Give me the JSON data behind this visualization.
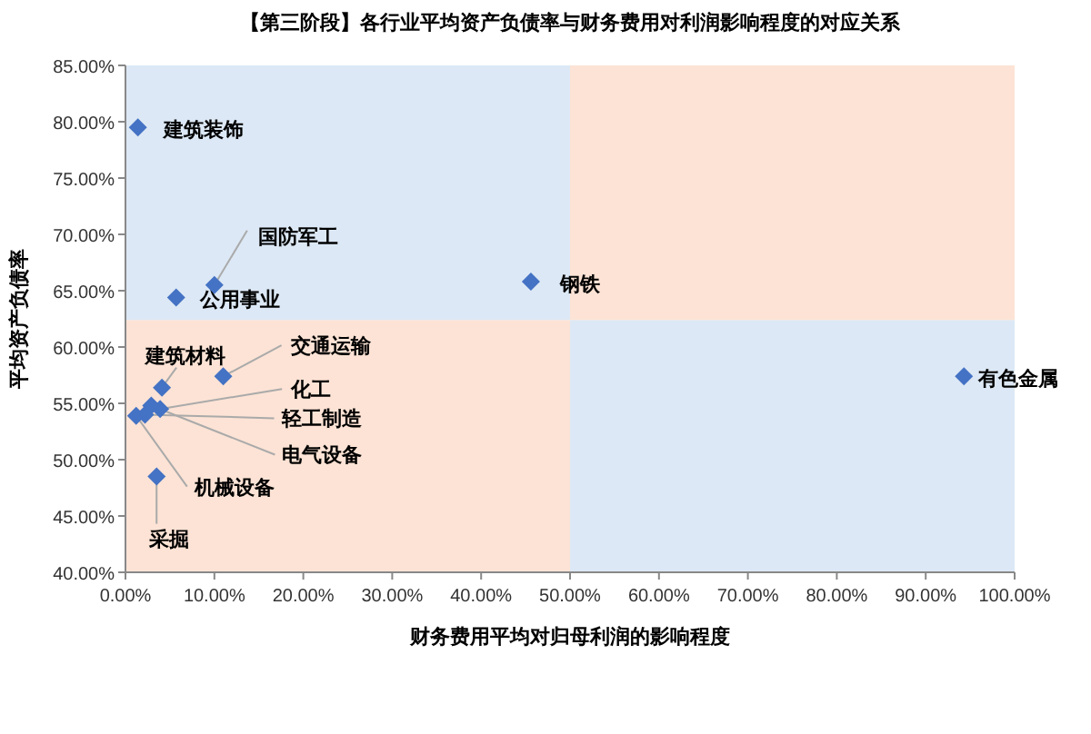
{
  "chart_data": {
    "type": "scatter",
    "title": "【第三阶段】各行业平均资产负债率与财务费用对利润影响程度的对应关系",
    "xlabel": "财务费用平均对归母利润的影响程度",
    "ylabel": "平均资产负债率",
    "series": [
      {
        "color": "#4472c4",
        "x": [
          1.4,
          10.0,
          5.7,
          45.6,
          94.3,
          11.0,
          4.1,
          3.9,
          2.2,
          2.9,
          1.2,
          3.5
        ],
        "values": [
          79.5,
          65.5,
          64.4,
          65.8,
          57.4,
          57.4,
          56.4,
          54.5,
          54.0,
          54.8,
          53.9,
          48.5
        ]
      }
    ],
    "marker": "diamond",
    "xlim": [
      0,
      100
    ],
    "xticks": [
      {
        "value": 0,
        "label": "0.00%"
      },
      {
        "value": 10,
        "label": "10.00%"
      },
      {
        "value": 20,
        "label": "20.00%"
      },
      {
        "value": 30,
        "label": "30.00%"
      },
      {
        "value": 40,
        "label": "40.00%"
      },
      {
        "value": 50,
        "label": "50.00%"
      },
      {
        "value": 60,
        "label": "60.00%"
      },
      {
        "value": 70,
        "label": "70.00%"
      },
      {
        "value": 80,
        "label": "80.00%"
      },
      {
        "value": 90,
        "label": "90.00%"
      },
      {
        "value": 100,
        "label": "100.00%"
      }
    ],
    "ylim": [
      40,
      85
    ],
    "yticks": [
      {
        "value": 40,
        "label": "40.00%"
      },
      {
        "value": 45,
        "label": "45.00%"
      },
      {
        "value": 50,
        "label": "50.00%"
      },
      {
        "value": 55,
        "label": "55.00%"
      },
      {
        "value": 60,
        "label": "60.00%"
      },
      {
        "value": 65,
        "label": "65.00%"
      },
      {
        "value": 70,
        "label": "70.00%"
      },
      {
        "value": 75,
        "label": "75.00%"
      },
      {
        "value": 80,
        "label": "80.00%"
      },
      {
        "value": 85,
        "label": "85.00%"
      }
    ],
    "bands": [
      {
        "axis": "x",
        "from": 0,
        "to": 50,
        "color": "#dce8f5"
      },
      {
        "axis": "x",
        "from": 50,
        "to": 100,
        "color": "#dce8f5"
      },
      {
        "axis": "y",
        "from": 40,
        "to": 62.4,
        "color": "#fce3d5"
      },
      {
        "axis": "y",
        "from": 62.4,
        "to": 85,
        "color": "#fce3d5"
      }
    ],
    "annotations": [
      {
        "text": "建筑装饰",
        "x": 1.4,
        "y": 79.5
      },
      {
        "text": "国防军工",
        "x": 10.0,
        "y": 65.5
      },
      {
        "text": "公用事业",
        "x": 5.7,
        "y": 64.4
      },
      {
        "text": "钢铁",
        "x": 45.6,
        "y": 65.8
      },
      {
        "text": "有色金属",
        "x": 94.3,
        "y": 57.4
      },
      {
        "text": "交通运输",
        "x": 11.0,
        "y": 57.4
      },
      {
        "text": "建筑材料",
        "x": 4.1,
        "y": 56.4
      },
      {
        "text": "化工",
        "x": 3.9,
        "y": 54.5
      },
      {
        "text": "轻工制造",
        "x": 2.2,
        "y": 54.0
      },
      {
        "text": "电气设备",
        "x": 2.9,
        "y": 54.8
      },
      {
        "text": "机械设备",
        "x": 1.2,
        "y": 53.9
      },
      {
        "text": "采掘",
        "x": 3.5,
        "y": 48.5
      }
    ]
  }
}
